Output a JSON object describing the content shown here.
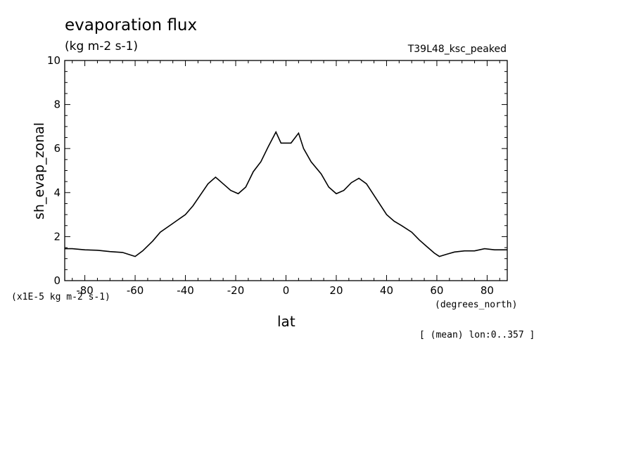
{
  "chart_data": {
    "type": "line",
    "title": "evaporation flux",
    "subtitle": "(kg m-2 s-1)",
    "run_label": "T39L48_ksc_peaked",
    "xlabel": "lat",
    "x_units": "(degrees_north)",
    "ylabel": "sh_evap_zonal",
    "y_scale_note": "(x1E-5 kg m-2 s-1)",
    "footnote": "[ (mean) lon:0..357 ]",
    "xlim": [
      -88,
      88
    ],
    "ylim": [
      0,
      10
    ],
    "x_ticks": [
      -80,
      -60,
      -40,
      -20,
      0,
      20,
      40,
      60,
      80
    ],
    "x_tick_labels": [
      "-80",
      "-60",
      "-40",
      "-20",
      "0",
      "20",
      "40",
      "60",
      "80"
    ],
    "y_ticks": [
      0,
      2,
      4,
      6,
      8,
      10
    ],
    "y_tick_labels": [
      "0",
      "2",
      "4",
      "6",
      "8",
      "10"
    ],
    "grid": false,
    "line_color": "#000000",
    "series": [
      {
        "x": [
          -88,
          -85,
          -80,
          -75,
          -70,
          -65,
          -60,
          -57,
          -53,
          -50,
          -45,
          -40,
          -37,
          -34,
          -31,
          -28,
          -25,
          -22,
          -19,
          -16,
          -13,
          -10,
          -7,
          -4,
          -2,
          0,
          2,
          5,
          7,
          10,
          14,
          17,
          20,
          23,
          26,
          29,
          32,
          36,
          40,
          43,
          46,
          50,
          53,
          56,
          59,
          61,
          64,
          67,
          71,
          75,
          79,
          83,
          88
        ],
        "y": [
          1.45,
          1.45,
          1.4,
          1.38,
          1.32,
          1.28,
          1.1,
          1.35,
          1.8,
          2.2,
          2.6,
          3.0,
          3.4,
          3.9,
          4.4,
          4.7,
          4.4,
          4.1,
          3.95,
          4.25,
          4.95,
          5.4,
          6.1,
          6.75,
          6.25,
          6.25,
          6.25,
          6.7,
          6.0,
          5.4,
          4.85,
          4.25,
          3.95,
          4.1,
          4.45,
          4.65,
          4.4,
          3.7,
          3.0,
          2.7,
          2.5,
          2.2,
          1.85,
          1.55,
          1.25,
          1.1,
          1.2,
          1.3,
          1.35,
          1.35,
          1.45,
          1.4,
          1.4
        ]
      }
    ]
  }
}
